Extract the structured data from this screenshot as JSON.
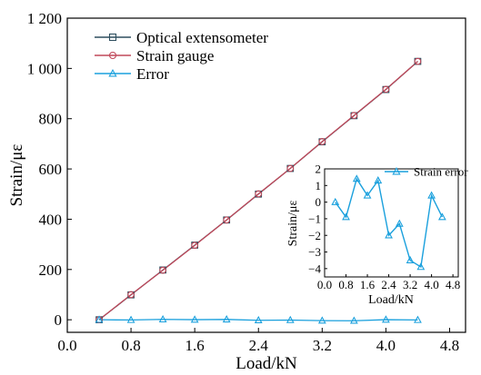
{
  "chart_data": [
    {
      "type": "line",
      "xlabel": "Load/kN",
      "ylabel": "Strain/με",
      "xlim": [
        0.0,
        5.0
      ],
      "ylim": [
        -50,
        1200
      ],
      "xticks": [
        0.0,
        0.8,
        1.6,
        2.4,
        3.2,
        4.0,
        4.8
      ],
      "xtick_labels": [
        "0.0",
        "0.8",
        "1.6",
        "2.4",
        "3.2",
        "4.0",
        "4.8"
      ],
      "yticks": [
        0,
        200,
        400,
        600,
        800,
        1000,
        1200
      ],
      "ytick_labels": [
        "0",
        "200",
        "400",
        "600",
        "800",
        "1 000",
        "1 200"
      ],
      "grid": false,
      "legend_position": "top-left",
      "x": [
        0.4,
        0.8,
        1.2,
        1.6,
        2.0,
        2.4,
        2.8,
        3.2,
        3.6,
        4.0,
        4.4
      ],
      "series": [
        {
          "name": "Optical extensometer",
          "marker": "square",
          "color": "#2f4f5f",
          "values": [
            0,
            99,
            198,
            297,
            397,
            500,
            602,
            708,
            812,
            916,
            1028
          ]
        },
        {
          "name": "Strain gauge",
          "marker": "circle",
          "color": "#c0485a",
          "values": [
            0,
            100,
            197,
            296,
            397,
            501,
            602,
            709,
            813,
            917,
            1028
          ]
        },
        {
          "name": "Error",
          "marker": "triangle",
          "color": "#1aa0dd",
          "values": [
            0,
            -0.9,
            1.4,
            0.4,
            1.3,
            -2.0,
            -1.3,
            -3.5,
            -3.9,
            0.4,
            -0.9
          ]
        }
      ]
    },
    {
      "type": "line",
      "xlabel": "Load/kN",
      "ylabel": "Strain/με",
      "xlim": [
        0.0,
        5.0
      ],
      "ylim": [
        -4.5,
        2.0
      ],
      "xticks": [
        0.0,
        0.8,
        1.6,
        2.4,
        3.2,
        4.0,
        4.8
      ],
      "xtick_labels": [
        "0.0",
        "0.8",
        "1.6",
        "2.4",
        "3.2",
        "4.0",
        "4.8"
      ],
      "yticks": [
        -4,
        -3,
        -2,
        -1,
        0,
        1,
        2
      ],
      "ytick_labels": [
        "−4",
        "−3",
        "−2",
        "−1",
        "0",
        "1",
        "2"
      ],
      "grid": false,
      "legend_position": "top-right",
      "x": [
        0.4,
        0.8,
        1.2,
        1.6,
        2.0,
        2.4,
        2.8,
        3.2,
        3.6,
        4.0,
        4.4
      ],
      "series": [
        {
          "name": "Strain error",
          "marker": "triangle",
          "color": "#1aa0dd",
          "values": [
            0,
            -0.9,
            1.4,
            0.4,
            1.3,
            -2.0,
            -1.3,
            -3.5,
            -3.9,
            0.4,
            -0.9
          ]
        }
      ]
    }
  ]
}
